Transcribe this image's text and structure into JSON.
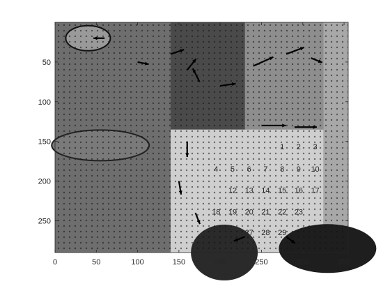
{
  "chart_data": {
    "type": "quiver",
    "title": "",
    "xlabel": "",
    "ylabel": "",
    "xlim": [
      0,
      355
    ],
    "ylim": [
      290,
      0
    ],
    "y_axis_direction": "reversed",
    "grid": false,
    "x_ticks": [
      0,
      50,
      100,
      150,
      200,
      250,
      300,
      350
    ],
    "y_ticks": [
      50,
      100,
      150,
      200,
      250
    ],
    "background": "grayscale image (calendar page with floral illustration)",
    "calendar_numbers_visible": [
      "1",
      "2",
      "3",
      "4",
      "5",
      "6",
      "7",
      "8",
      "9",
      "10",
      "12",
      "13",
      "14",
      "15",
      "16",
      "17",
      "18",
      "19",
      "20",
      "21",
      "22",
      "23",
      "27",
      "28",
      "29"
    ],
    "vector_field": [
      {
        "x": 140,
        "y": 40,
        "u": 12,
        "v": -4
      },
      {
        "x": 160,
        "y": 60,
        "u": 8,
        "v": -10
      },
      {
        "x": 175,
        "y": 75,
        "u": -6,
        "v": -12
      },
      {
        "x": 200,
        "y": 80,
        "u": 14,
        "v": -2
      },
      {
        "x": 240,
        "y": 55,
        "u": 18,
        "v": -8
      },
      {
        "x": 280,
        "y": 40,
        "u": 16,
        "v": -6
      },
      {
        "x": 310,
        "y": 45,
        "u": 10,
        "v": 4
      },
      {
        "x": 250,
        "y": 130,
        "u": 22,
        "v": 0
      },
      {
        "x": 290,
        "y": 132,
        "u": 20,
        "v": 0
      },
      {
        "x": 160,
        "y": 150,
        "u": 0,
        "v": 14
      },
      {
        "x": 150,
        "y": 200,
        "u": 2,
        "v": 12
      },
      {
        "x": 170,
        "y": 240,
        "u": 4,
        "v": 10
      },
      {
        "x": 230,
        "y": 270,
        "u": -10,
        "v": 4
      },
      {
        "x": 280,
        "y": 270,
        "u": 8,
        "v": 6
      },
      {
        "x": 60,
        "y": 20,
        "u": -10,
        "v": 0
      },
      {
        "x": 100,
        "y": 50,
        "u": 10,
        "v": 2
      }
    ],
    "colors": {
      "arrows": "#000000",
      "axes": "#262626",
      "background": "#ffffff"
    }
  }
}
